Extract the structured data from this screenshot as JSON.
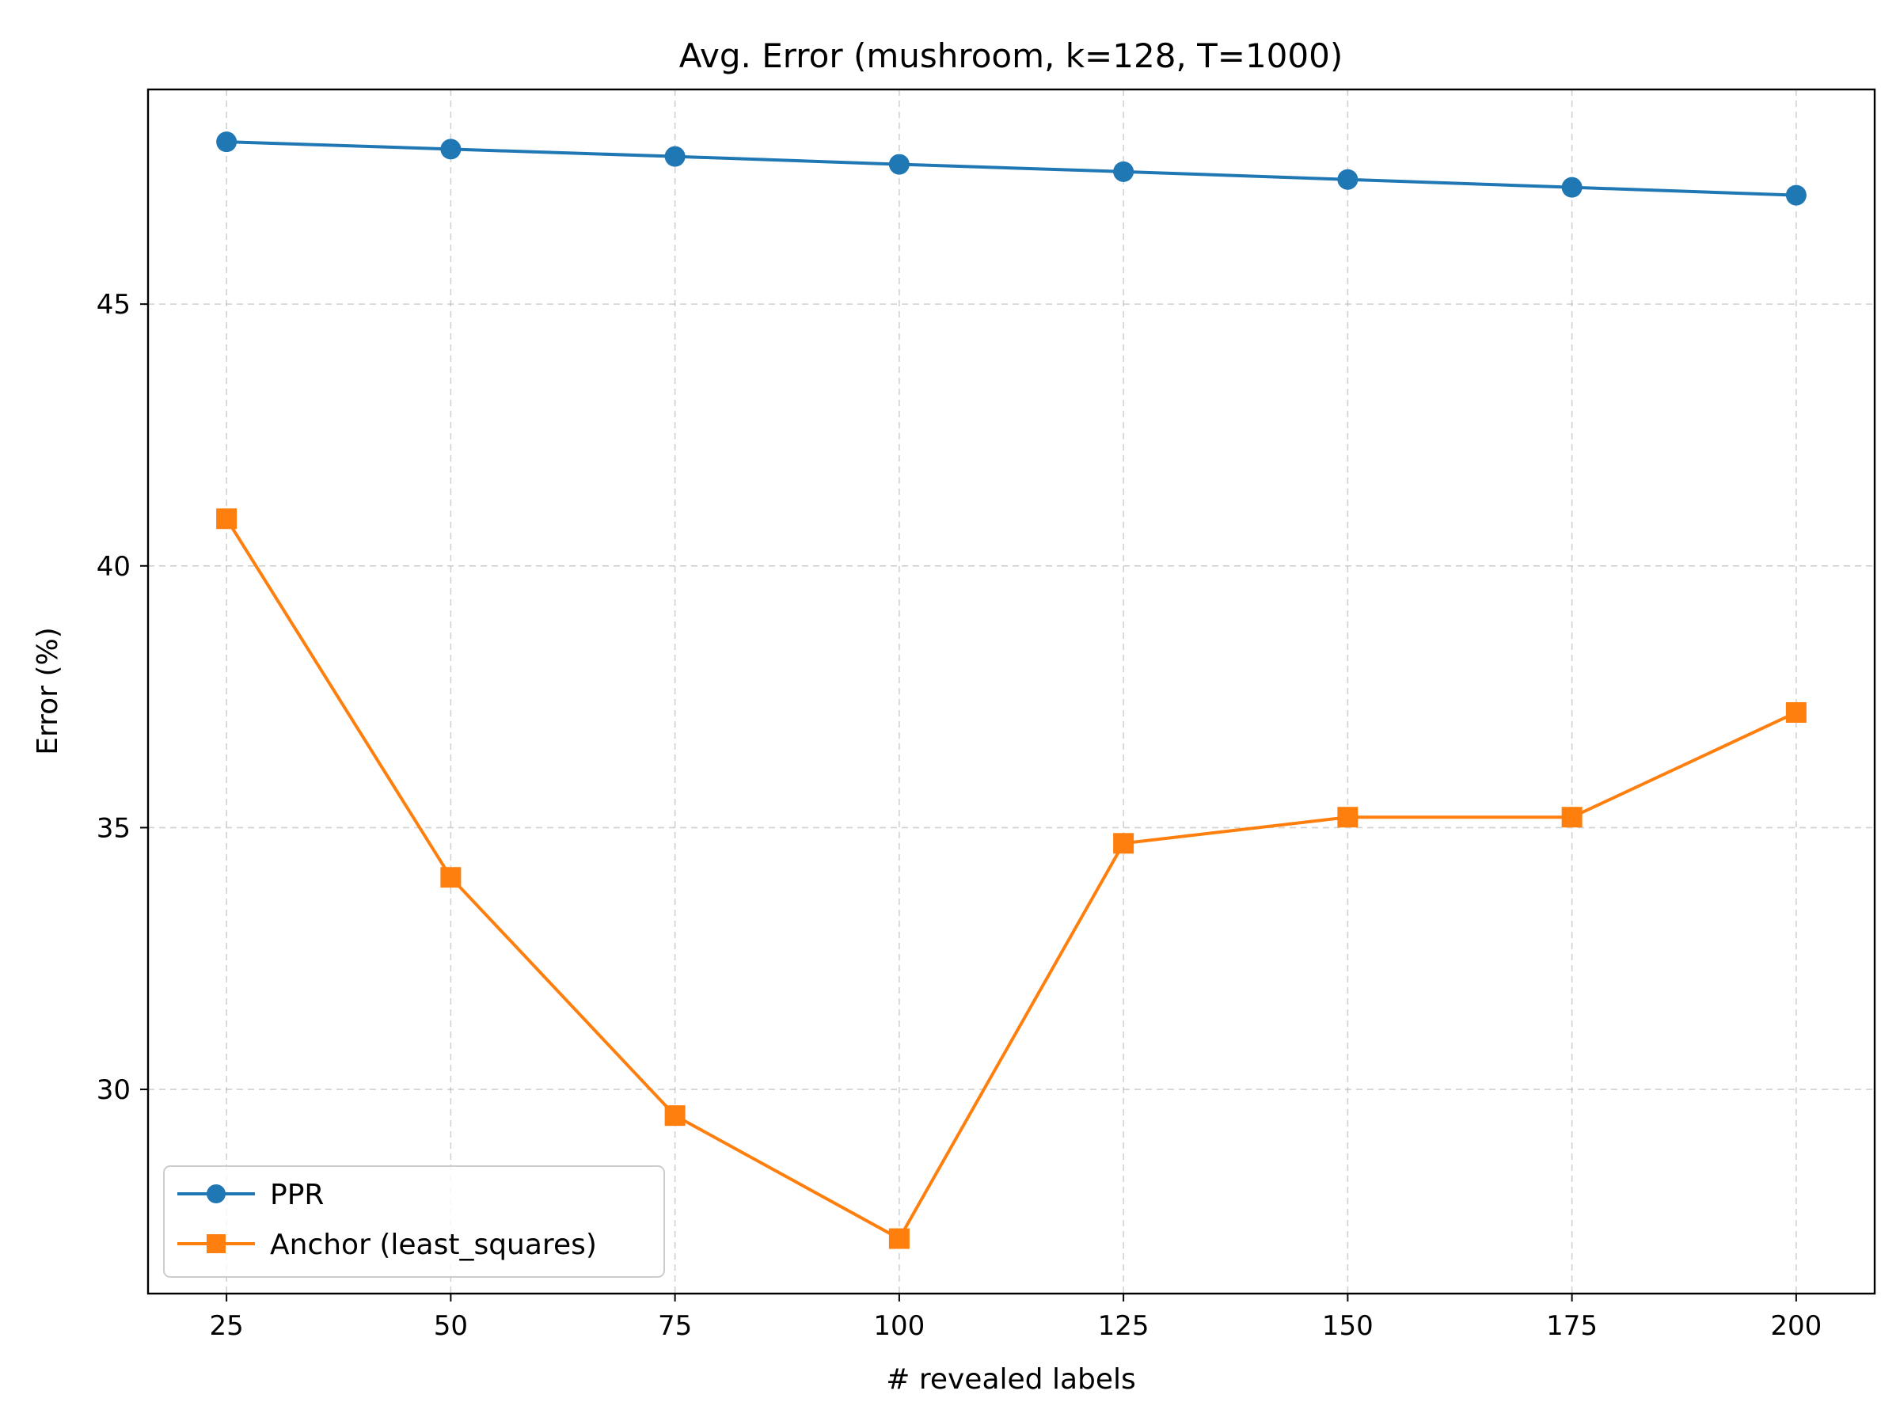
{
  "chart_data": {
    "type": "line",
    "title": "Avg. Error (mushroom, k=128, T=1000)",
    "xlabel": "# revealed labels",
    "ylabel": "Error (%)",
    "x": [
      25,
      50,
      75,
      100,
      125,
      150,
      175,
      200
    ],
    "xticks": [
      25,
      50,
      75,
      100,
      125,
      150,
      175,
      200
    ],
    "yticks": [
      30,
      35,
      40,
      45
    ],
    "xlim": [
      16.25,
      208.75
    ],
    "ylim": [
      26.1,
      49.1
    ],
    "grid": true,
    "legend_position": "lower-left",
    "series": [
      {
        "name": "PPR",
        "marker": "circle",
        "color": "#1f77b4",
        "values": [
          48.1,
          47.96,
          47.82,
          47.67,
          47.53,
          47.38,
          47.23,
          47.08
        ]
      },
      {
        "name": "Anchor (least_squares)",
        "marker": "square",
        "color": "#ff7f0e",
        "values": [
          40.9,
          34.05,
          29.5,
          27.15,
          34.7,
          35.2,
          35.2,
          37.2
        ]
      }
    ]
  }
}
